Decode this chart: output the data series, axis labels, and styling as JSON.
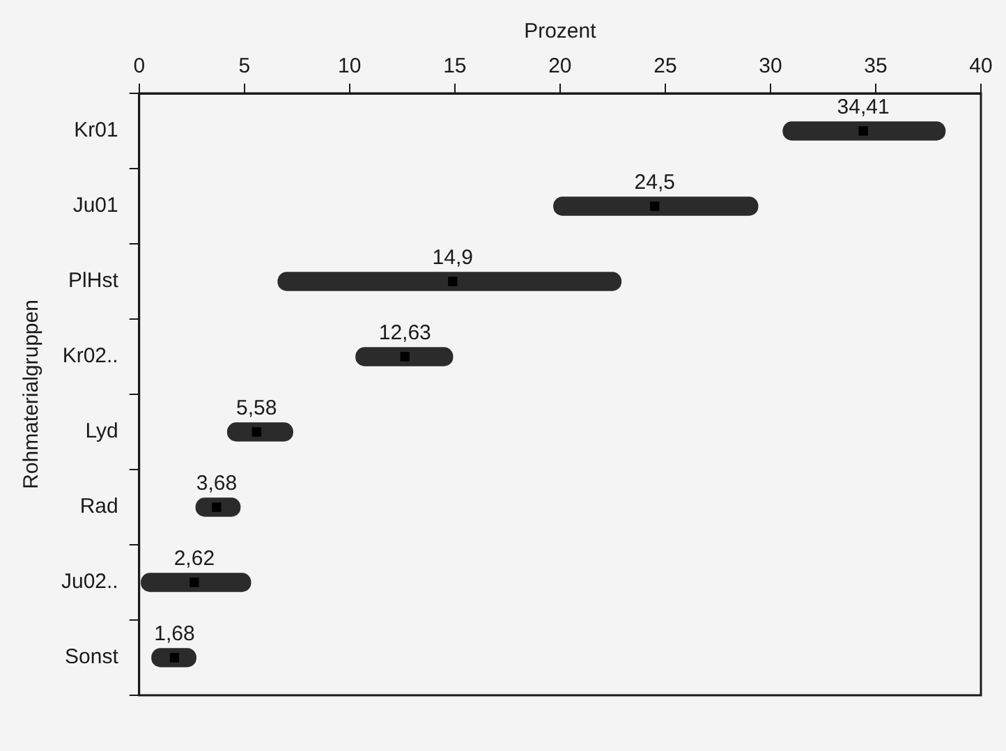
{
  "chart_data": {
    "type": "bar",
    "orientation": "horizontal",
    "xlabel": "Prozent",
    "ylabel": "Rohmaterialgruppen",
    "categories": [
      "Kr01",
      "Ju01",
      "PlHst",
      "Kr02..",
      "Lyd",
      "Rad",
      "Ju02..",
      "Sonst"
    ],
    "xlim": [
      0,
      40
    ],
    "xticks": [
      0,
      5,
      10,
      15,
      20,
      25,
      30,
      35,
      40
    ],
    "grid": false,
    "legend": false,
    "series": [
      {
        "color": "#2b2b2b",
        "base": [
          30.6,
          19.7,
          6.6,
          10.3,
          4.2,
          2.7,
          0.1,
          0.6
        ],
        "values": [
          7.7,
          9.7,
          16.3,
          4.6,
          3.1,
          2.1,
          5.2,
          2.1
        ]
      },
      {
        "type": "scatter",
        "color": "#000000",
        "values": [
          34.41,
          24.5,
          14.9,
          12.63,
          5.58,
          3.68,
          2.62,
          1.68
        ],
        "value_labels": [
          "34,41",
          "24,5",
          "14,9",
          "12,63",
          "5,58",
          "3,68",
          "2,62",
          "1,68"
        ]
      }
    ]
  }
}
